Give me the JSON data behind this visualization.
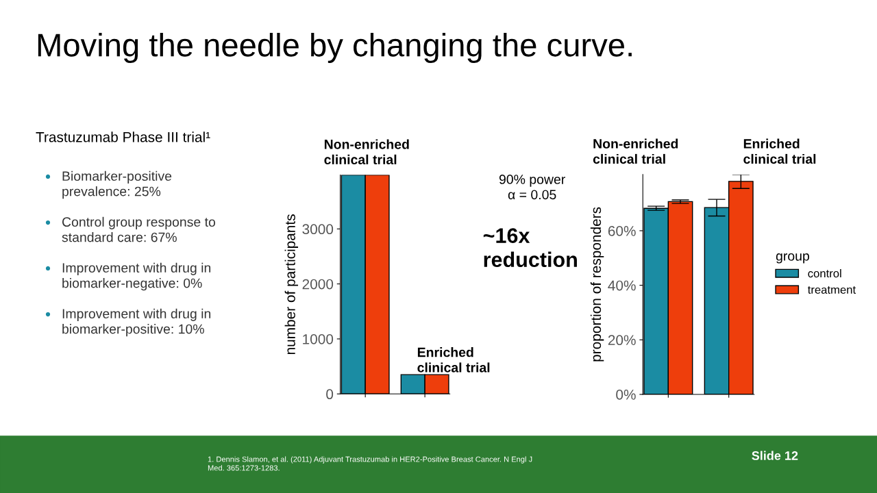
{
  "chart_data": [
    {
      "type": "other",
      "title": "Moving the needle by changing the curve.",
      "annotations": [
        "Trastuzumab Phase III trial¹",
        "Biomarker-positive\nprevalence: 25%",
        "Control group response to\nstandard care: 67%",
        "Improvement with drug in\nbiomarker-negative: 0%",
        "Improvement with drug in\nbiomarker-positive: 10%",
        "1. Dennis Slamon, et al. (2011) Adjuvant Trastuzumab in HER2-Positive Breast Cancer. N Engl J\nMed. 365:1273-1283.",
        "Slide 12"
      ]
    },
    {
      "type": "bar",
      "ylabel": "number of participants",
      "categories": [
        null,
        null
      ],
      "series": [
        {
          "color": "#1b8ca3",
          "values": [
            3980,
            350
          ]
        },
        {
          "color": "#ee3e0c",
          "values": [
            3980,
            350
          ]
        }
      ],
      "ylim": [
        0,
        3980
      ],
      "yticks": [
        0,
        1000,
        2000,
        3000
      ],
      "grid": false,
      "legend": false,
      "annotations": [
        "Non-enriched\nclinical trial",
        "Enriched\nclinical trial",
        "90% power\nα = 0.05",
        "~16x\nreduction"
      ]
    },
    {
      "type": "bar",
      "ylabel": "proportion of responders",
      "categories": [
        null,
        null
      ],
      "legend_title": "group",
      "series": [
        {
          "name": "control",
          "color": "#1b8ca3",
          "values": [
            68.2,
            68.5
          ],
          "errors": [
            [
              67.5,
              69.0
            ],
            [
              65.4,
              71.5
            ]
          ]
        },
        {
          "name": "treatment",
          "color": "#ee3e0c",
          "values": [
            70.7,
            78.1
          ],
          "errors": [
            [
              70.0,
              71.3
            ],
            [
              75.5,
              80.6
            ]
          ]
        }
      ],
      "ylim": [
        0,
        80.6
      ],
      "yticks": [
        {
          "value": 0,
          "label": "0%"
        },
        {
          "value": 20,
          "label": "20%"
        },
        {
          "value": 40,
          "label": "40%"
        },
        {
          "value": 60,
          "label": "60%"
        }
      ],
      "grid": false,
      "legend": "right",
      "annotations": [
        "Non-enriched\nclinical trial",
        "Enriched\nclinical trial"
      ]
    }
  ]
}
